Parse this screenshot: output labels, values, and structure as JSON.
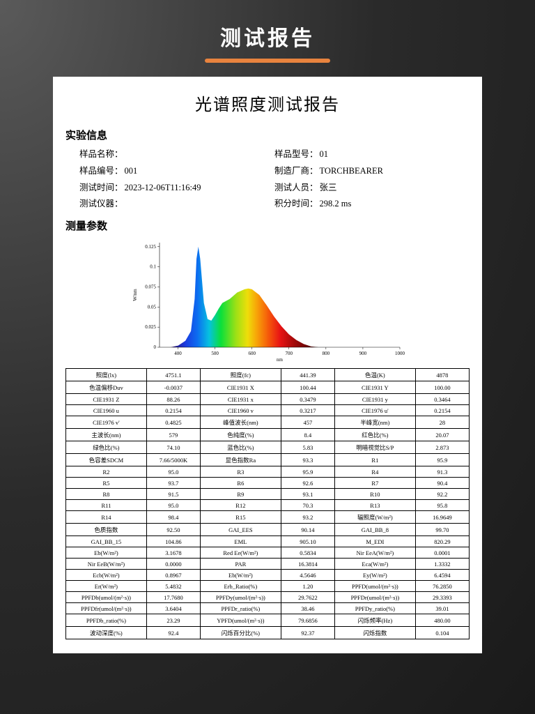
{
  "page": {
    "title": "测试报告"
  },
  "report": {
    "title": "光谱照度测试报告",
    "info_section_title": "实验信息",
    "measure_section_title": "测量参数",
    "info": {
      "sample_name_label": "样品名称：",
      "sample_name": "",
      "sample_model_label": "样品型号：",
      "sample_model": "01",
      "sample_no_label": "样品编号：",
      "sample_no": "001",
      "manufacturer_label": "制造厂商：",
      "manufacturer": "TORCHBEARER",
      "test_time_label": "测试时间：",
      "test_time": "2023-12-06T11:16:49",
      "tester_label": "测试人员：",
      "tester": "张三",
      "instrument_label": "测试仪器：",
      "instrument": "",
      "integration_label": "积分时间：",
      "integration": "298.2 ms"
    }
  },
  "chart": {
    "type": "area_spectrum",
    "xlim": [
      350,
      1000
    ],
    "xticks": [
      400,
      500,
      600,
      700,
      800,
      900,
      1000
    ],
    "xlabel": "nm",
    "ylabel": "W/nm",
    "ylim": [
      0,
      0.13
    ],
    "yticks": [
      0,
      0.025,
      0.05,
      0.075,
      0.1,
      0.125
    ],
    "axis_color": "#000000",
    "axis_fontsize": 7,
    "series": [
      {
        "points": [
          [
            380,
            0
          ],
          [
            400,
            0.002
          ],
          [
            420,
            0.008
          ],
          [
            435,
            0.02
          ],
          [
            445,
            0.06
          ],
          [
            450,
            0.11
          ],
          [
            455,
            0.125
          ],
          [
            460,
            0.11
          ],
          [
            470,
            0.055
          ],
          [
            480,
            0.035
          ],
          [
            490,
            0.033
          ],
          [
            500,
            0.04
          ],
          [
            510,
            0.048
          ],
          [
            520,
            0.055
          ],
          [
            540,
            0.06
          ],
          [
            560,
            0.068
          ],
          [
            580,
            0.072
          ],
          [
            590,
            0.073
          ],
          [
            600,
            0.072
          ],
          [
            620,
            0.065
          ],
          [
            640,
            0.052
          ],
          [
            660,
            0.038
          ],
          [
            680,
            0.026
          ],
          [
            700,
            0.016
          ],
          [
            720,
            0.009
          ],
          [
            740,
            0.004
          ],
          [
            760,
            0.001
          ],
          [
            780,
            0
          ]
        ],
        "gradient_stops": [
          {
            "offset": 0.0,
            "color": "#2b0a6b"
          },
          {
            "offset": 0.1,
            "color": "#1b3be0"
          },
          {
            "offset": 0.18,
            "color": "#0c6cf0"
          },
          {
            "offset": 0.26,
            "color": "#06c1e0"
          },
          {
            "offset": 0.34,
            "color": "#0ae03a"
          },
          {
            "offset": 0.44,
            "color": "#9be016"
          },
          {
            "offset": 0.52,
            "color": "#eede0a"
          },
          {
            "offset": 0.58,
            "color": "#f7a608"
          },
          {
            "offset": 0.66,
            "color": "#f55a0a"
          },
          {
            "offset": 0.74,
            "color": "#e81414"
          },
          {
            "offset": 0.84,
            "color": "#a00808"
          },
          {
            "offset": 1.0,
            "color": "#3a0202"
          }
        ]
      }
    ]
  },
  "table": {
    "rows": [
      [
        "照度(lx)",
        "4751.1",
        "照度(fc)",
        "441.39",
        "色温(K)",
        "4878"
      ],
      [
        "色温偏移Duv",
        "-0.0037",
        "CIE1931 X",
        "100.44",
        "CIE1931 Y",
        "100.00"
      ],
      [
        "CIE1931 Z",
        "88.26",
        "CIE1931 x",
        "0.3479",
        "CIE1931 y",
        "0.3464"
      ],
      [
        "CIE1960 u",
        "0.2154",
        "CIE1960 v",
        "0.3217",
        "CIE1976 u'",
        "0.2154"
      ],
      [
        "CIE1976 v'",
        "0.4825",
        "峰值波长(nm)",
        "457",
        "半峰宽(nm)",
        "28"
      ],
      [
        "主波长(nm)",
        "579",
        "色纯度(%)",
        "8.4",
        "红色比(%)",
        "20.07"
      ],
      [
        "绿色比(%)",
        "74.10",
        "蓝色比(%)",
        "5.83",
        "明暗视觉比S/P",
        "2.873"
      ],
      [
        "色容差SDCM",
        "7.66/5000K",
        "显色指数Ra",
        "93.3",
        "R1",
        "95.9"
      ],
      [
        "R2",
        "95.0",
        "R3",
        "95.9",
        "R4",
        "91.3"
      ],
      [
        "R5",
        "93.7",
        "R6",
        "92.6",
        "R7",
        "90.4"
      ],
      [
        "R8",
        "91.5",
        "R9",
        "93.1",
        "R10",
        "92.2"
      ],
      [
        "R11",
        "95.0",
        "R12",
        "70.3",
        "R13",
        "95.8"
      ],
      [
        "R14",
        "98.4",
        "R15",
        "93.2",
        "辐照度(W/m²)",
        "16.9649"
      ],
      [
        "色质指数",
        "92.50",
        "GAI_EES",
        "90.14",
        "GAI_BB_8",
        "99.70"
      ],
      [
        "GAI_BB_15",
        "104.86",
        "EML",
        "905.10",
        "M_EDI",
        "820.29"
      ],
      [
        "Eb(W/m²)",
        "3.1678",
        "Red Ee(W/m²)",
        "0.5834",
        "Nir EeA(W/m²)",
        "0.0001"
      ],
      [
        "Nir EeB(W/m²)",
        "0.0000",
        "PAR",
        "16.3814",
        "Eca(W/m²)",
        "1.3332"
      ],
      [
        "Ecb(W/m²)",
        "0.8967",
        "Eb(W/m²)",
        "4.5646",
        "Ey(W/m²)",
        "6.4594"
      ],
      [
        "Er(W/m²)",
        "5.4832",
        "Erb_Ratio(%)",
        "1.20",
        "PPFD(umol/(m²·s))",
        "76.2850"
      ],
      [
        "PPFDb(umol/(m²·s))",
        "17.7680",
        "PPFDy(umol/(m²·s))",
        "29.7622",
        "PPFDr(umol/(m²·s))",
        "29.3393"
      ],
      [
        "PPFDfr(umol/(m²·s))",
        "3.6404",
        "PPFDr_ratio(%)",
        "38.46",
        "PPFDy_ratio(%)",
        "39.01"
      ],
      [
        "PPFDb_ratio(%)",
        "23.29",
        "YPFD(umol/(m²·s))",
        "79.6856",
        "闪烁频率(Hz)",
        "480.00"
      ],
      [
        "波动深度(%)",
        "92.4",
        "闪烁百分比(%)",
        "92.37",
        "闪烁指数",
        "0.104"
      ]
    ],
    "cell_border_color": "#000000",
    "font_size": 8.5
  }
}
